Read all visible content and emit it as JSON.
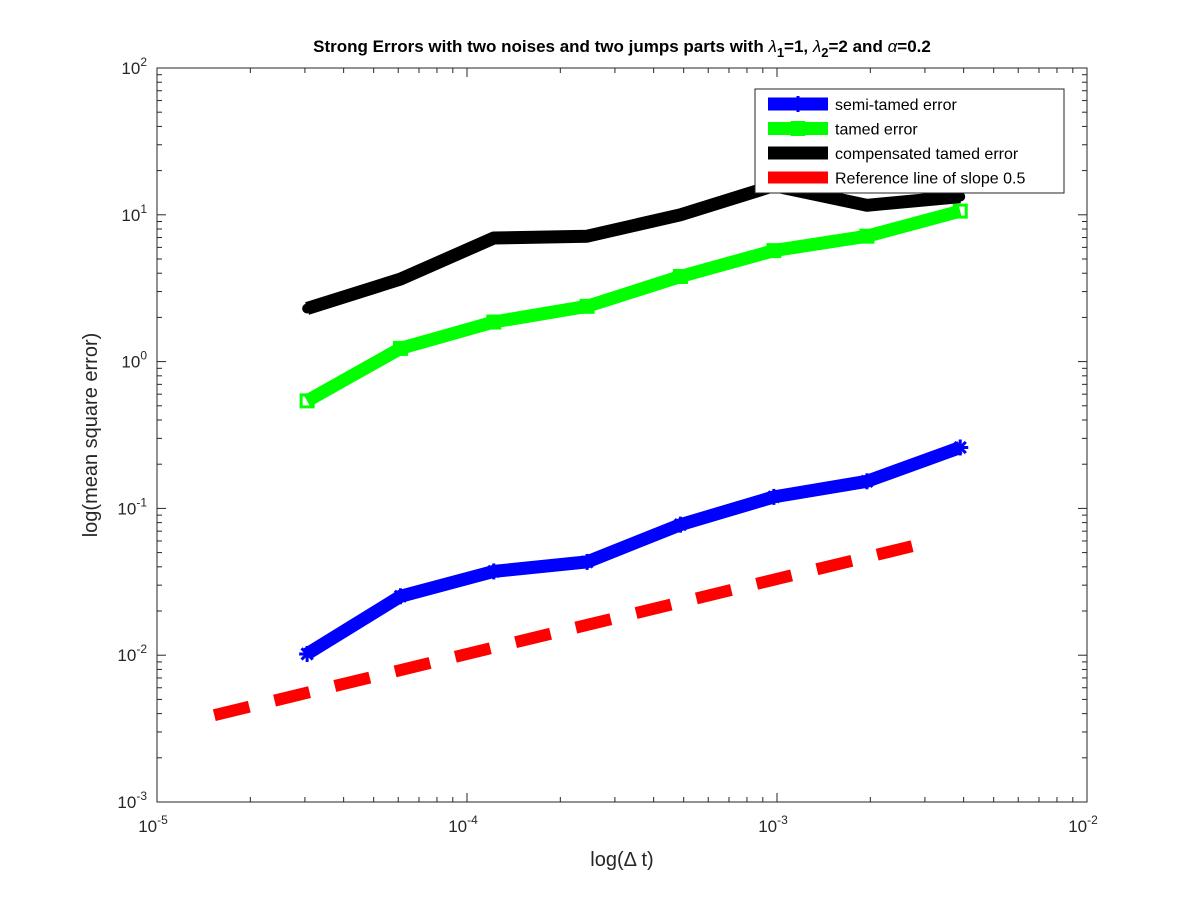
{
  "chart_data": {
    "type": "line",
    "title": "Strong Errors with two noises and two jumps parts with λ1=1, λ2=2 and α=0.2",
    "title_parts": [
      {
        "text": "Strong Errors with two noises and two jumps parts with "
      },
      {
        "text": "λ",
        "italic": true
      },
      {
        "text": "1",
        "sub": true
      },
      {
        "text": "=1, "
      },
      {
        "text": "λ",
        "italic": true
      },
      {
        "text": "2",
        "sub": true
      },
      {
        "text": "=2 and "
      },
      {
        "text": "α",
        "italic": true
      },
      {
        "text": "=0.2"
      }
    ],
    "xlabel": "log(Δ t)",
    "ylabel": "log(mean square error)",
    "x_scale": "log",
    "y_scale": "log",
    "xlim": [
      1e-05,
      0.01
    ],
    "ylim": [
      0.001,
      100
    ],
    "x_ticks": [
      {
        "value": 1e-05,
        "base": "10",
        "exp": "-5"
      },
      {
        "value": 0.0001,
        "base": "10",
        "exp": "-4"
      },
      {
        "value": 0.001,
        "base": "10",
        "exp": "-3"
      },
      {
        "value": 0.01,
        "base": "10",
        "exp": "-2"
      }
    ],
    "y_ticks": [
      {
        "value": 0.001,
        "base": "10",
        "exp": "-3"
      },
      {
        "value": 0.01,
        "base": "10",
        "exp": "-2"
      },
      {
        "value": 0.1,
        "base": "10",
        "exp": "-1"
      },
      {
        "value": 1,
        "base": "10",
        "exp": "0"
      },
      {
        "value": 10,
        "base": "10",
        "exp": "1"
      },
      {
        "value": 100,
        "base": "10",
        "exp": "2"
      }
    ],
    "grid": false,
    "legend_position": "top-right",
    "series": [
      {
        "name": "semi-tamed error",
        "color": "#0000ff",
        "line_style": "solid",
        "marker": "star",
        "x": [
          3.05e-05,
          6.1e-05,
          0.000122,
          0.000244,
          0.000488,
          0.000977,
          0.00195,
          0.0039
        ],
        "y": [
          0.0102,
          0.0252,
          0.0372,
          0.0432,
          0.0775,
          0.1198,
          0.153,
          0.26
        ]
      },
      {
        "name": "tamed error",
        "color": "#00ff00",
        "line_style": "solid",
        "marker": "square",
        "x": [
          3.05e-05,
          6.1e-05,
          0.000122,
          0.000244,
          0.000488,
          0.000977,
          0.00195,
          0.0039
        ],
        "y": [
          0.54,
          1.23,
          1.86,
          2.38,
          3.8,
          5.7,
          7.15,
          10.6
        ]
      },
      {
        "name": "compensated tamed error",
        "color": "#000000",
        "line_style": "solid",
        "marker": "circle",
        "x": [
          3.05e-05,
          6.1e-05,
          0.000122,
          0.000244,
          0.000488,
          0.000977,
          0.00195,
          0.0039
        ],
        "y": [
          2.3,
          3.65,
          6.95,
          7.15,
          10.0,
          15.8,
          11.6,
          13.3
        ]
      },
      {
        "name": "Reference line of slope 0.5",
        "color": "#ff0000",
        "line_style": "dashed",
        "marker": "none",
        "x": [
          1.53e-05,
          0.003
        ],
        "y": [
          0.0039,
          0.058
        ]
      }
    ]
  }
}
